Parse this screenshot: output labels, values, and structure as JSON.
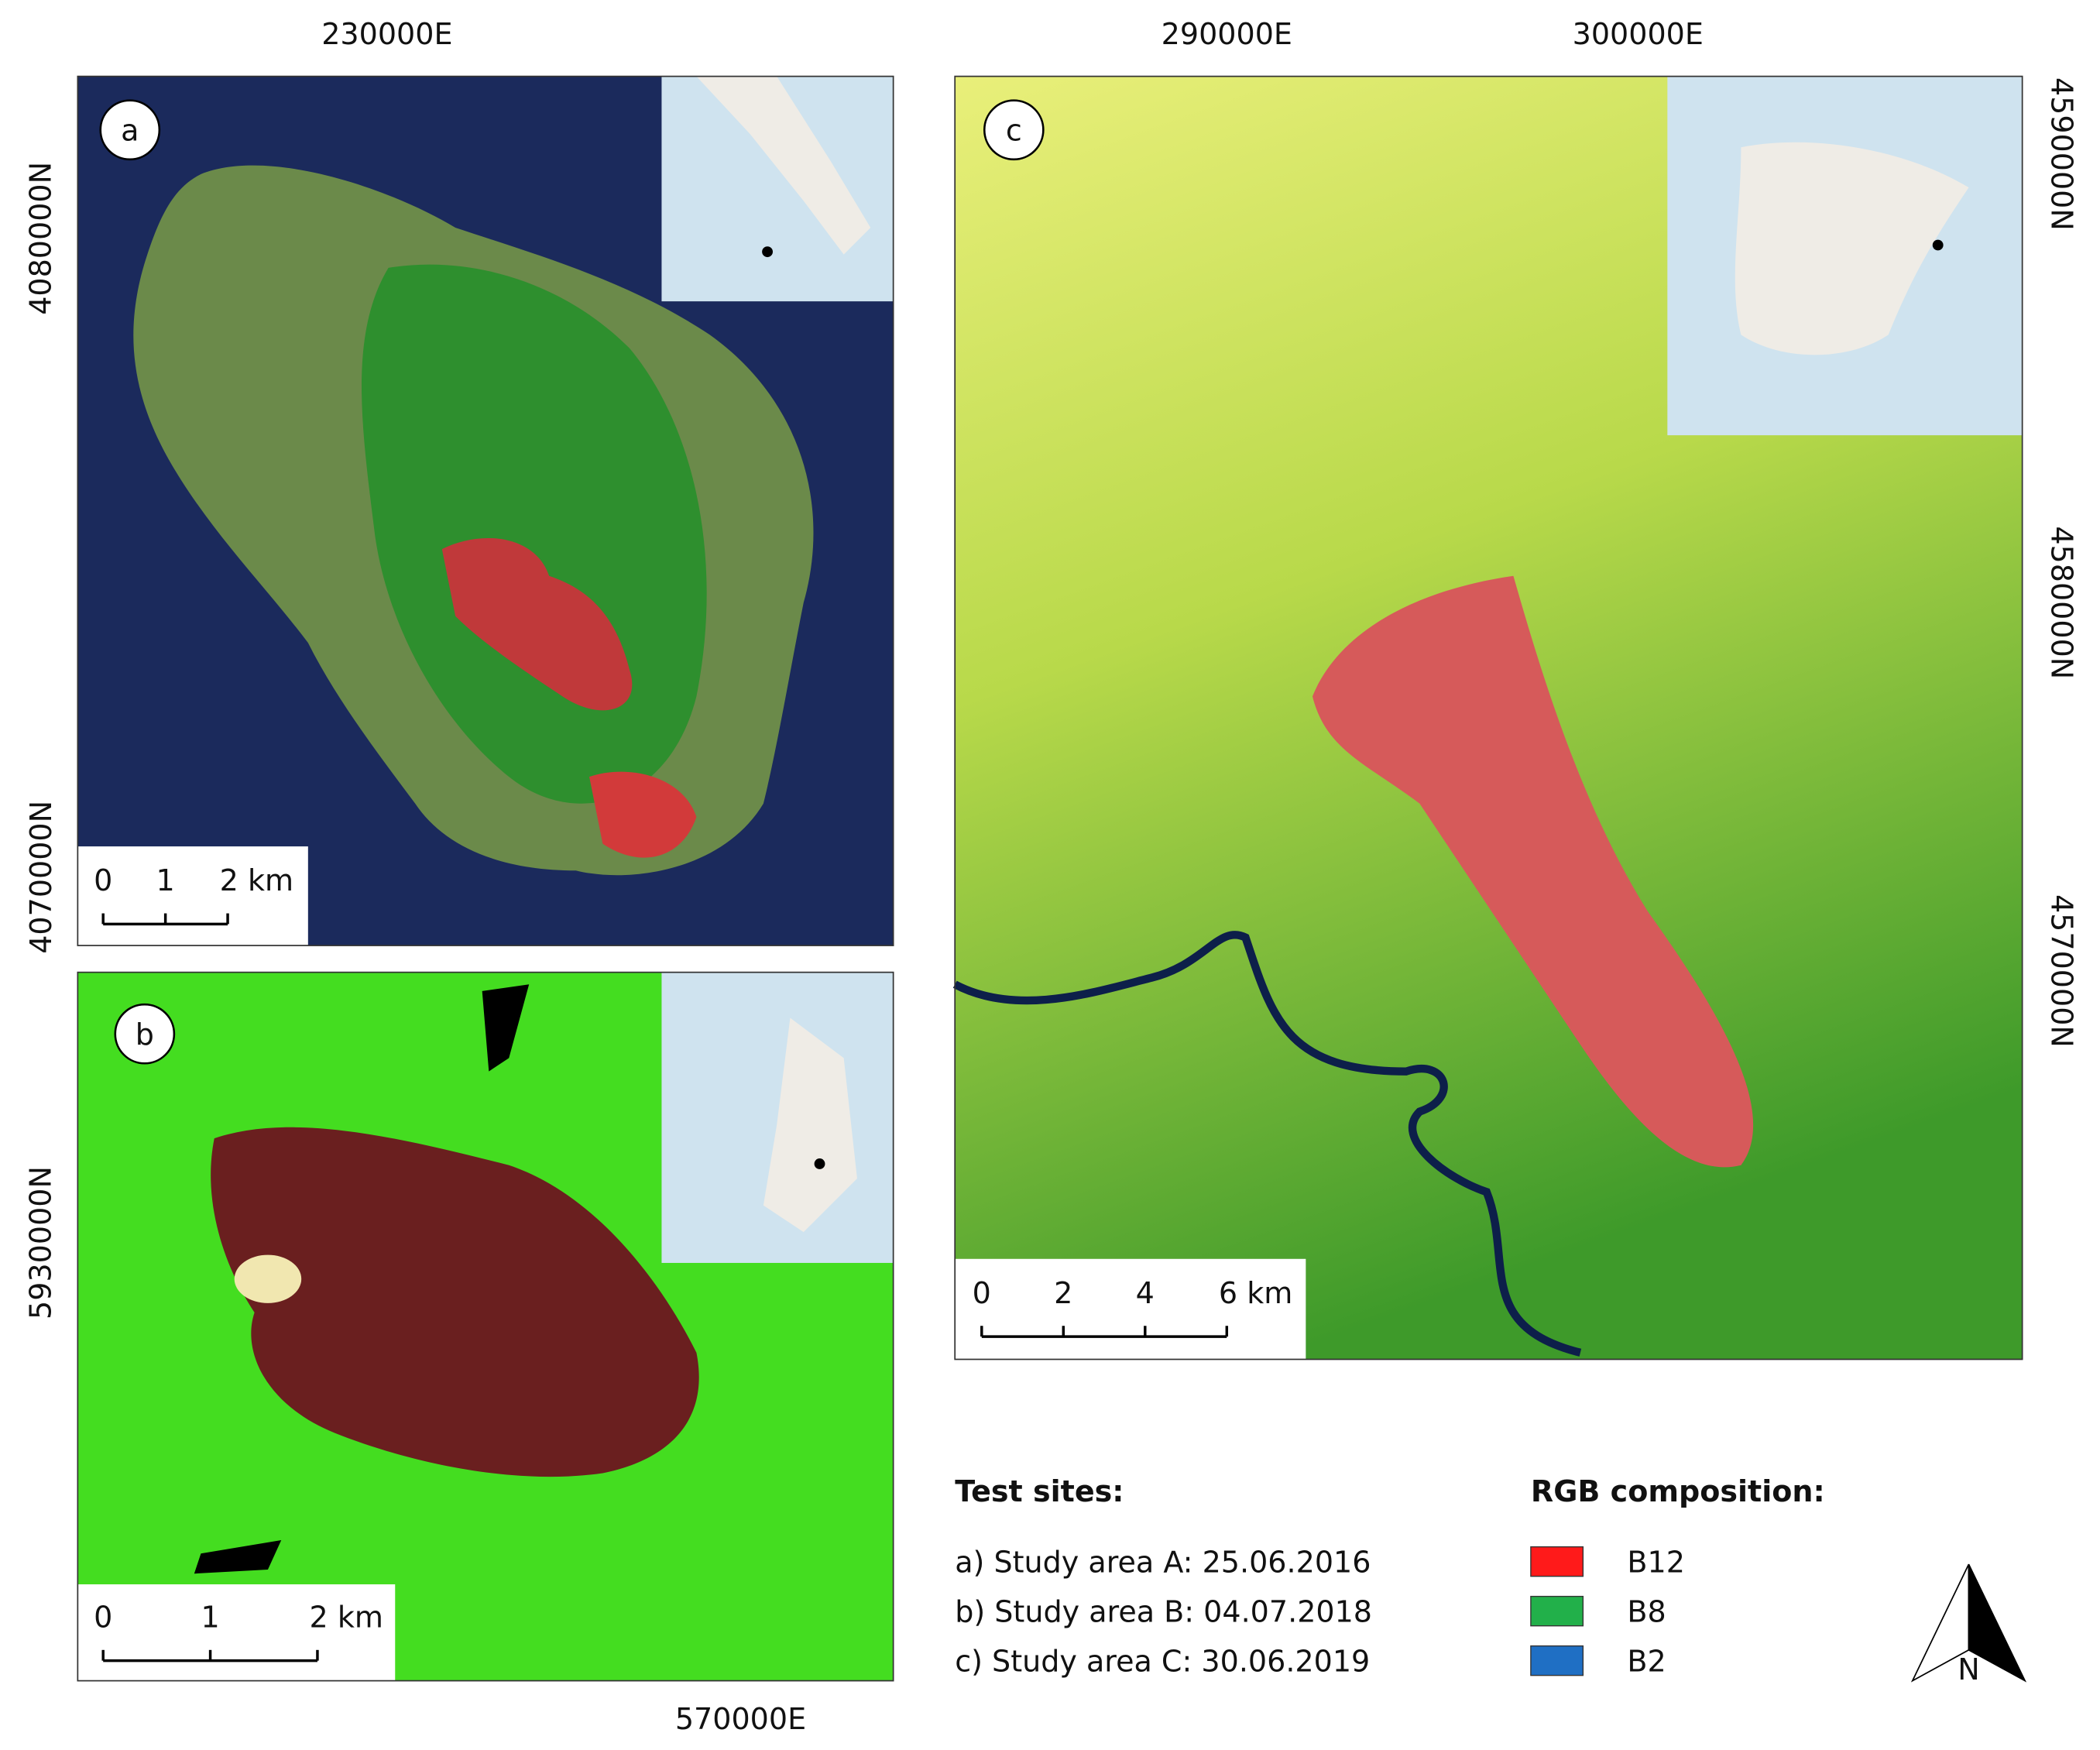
{
  "panels": [
    {
      "letter": "a",
      "top_labels": [
        "230000E"
      ],
      "left_labels": [
        "4080000N",
        "4070000N"
      ],
      "scale": [
        "0",
        "1",
        "2 km"
      ]
    },
    {
      "letter": "b",
      "left_labels": [
        "5930000N"
      ],
      "bottom_labels": [
        "570000E"
      ],
      "scale": [
        "0",
        "1",
        "2 km"
      ]
    },
    {
      "letter": "c",
      "top_labels": [
        "290000E",
        "300000E"
      ],
      "right_labels": [
        "4590000N",
        "4580000N",
        "4570000N"
      ],
      "scale": [
        "0",
        "2",
        "4",
        "6 km"
      ]
    }
  ],
  "legend": {
    "test_sites": {
      "title": "Test sites:",
      "items": [
        "a) Study area A: 25.06.2016",
        "b) Study area B: 04.07.2018",
        "c) Study area C: 30.06.2019"
      ]
    },
    "rgb": {
      "title": "RGB composition:",
      "items": [
        {
          "label": "B12",
          "color": "#ff1a1a"
        },
        {
          "label": "B8",
          "color": "#22b04a"
        },
        {
          "label": "B2",
          "color": "#1f6fc4"
        }
      ]
    }
  },
  "north": "N"
}
